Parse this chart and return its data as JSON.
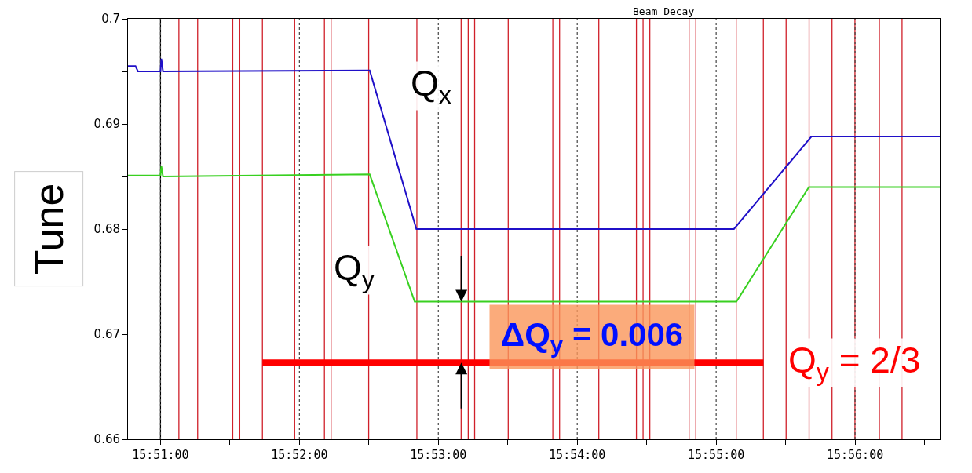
{
  "chart_data": {
    "type": "line",
    "ylabel": "Tune",
    "legend": false,
    "grid": "x",
    "line_style": "solid",
    "marker": "none",
    "annotations": [
      "Beam Decay",
      {
        "text": "ΔQ$_{y}$ = 0.006",
        "x": 15.8861,
        "y": 0.6731
      }
    ],
    "xlim": [
      15.8461,
      15.9435
    ],
    "xticks": [
      {
        "value": 15.85,
        "label": "15:51:00"
      },
      {
        "value": 15.858333,
        "label": null
      },
      {
        "value": 15.866667,
        "label": "15:52:00"
      },
      {
        "value": 15.875,
        "label": null
      },
      {
        "value": 15.883333,
        "label": "15:53:00"
      },
      {
        "value": 15.891667,
        "label": null
      },
      {
        "value": 15.9,
        "label": "15:54:00"
      },
      {
        "value": 15.908333,
        "label": null
      },
      {
        "value": 15.916667,
        "label": "15:55:00"
      },
      {
        "value": 15.925,
        "label": null
      },
      {
        "value": 15.933333,
        "label": "15:56:00"
      },
      {
        "value": 15.941667,
        "label": null
      }
    ],
    "ylim": [
      0.66,
      0.7
    ],
    "yticks": [
      0.7,
      {
        "value": 0.695,
        "label": null
      },
      0.69,
      {
        "value": 0.685,
        "label": null
      },
      0.68,
      {
        "value": 0.675,
        "label": null
      },
      0.67,
      {
        "value": 0.665,
        "label": null
      },
      0.66
    ],
    "series": [
      {
        "name": "Q$_{x}$",
        "color": "#2010c8",
        "x": [
          15.8461,
          15.847,
          15.8473,
          15.85,
          15.8501,
          15.8503,
          15.8751,
          15.8807,
          15.9188,
          15.9281,
          15.9435
        ],
        "values": [
          0.6955,
          0.6955,
          0.695,
          0.695,
          0.6962,
          0.695,
          0.6951,
          0.68,
          0.68,
          0.6888,
          0.6888
        ]
      },
      {
        "name": "Q$_{y}$",
        "color": "#38d020",
        "x": [
          15.8461,
          15.85,
          15.8501,
          15.8503,
          15.8751,
          15.8805,
          15.9191,
          15.9278,
          15.9435
        ],
        "values": [
          0.6851,
          0.6851,
          0.686,
          0.685,
          0.6852,
          0.6731,
          0.6731,
          0.684,
          0.684
        ]
      },
      {
        "name": "Q$_{y}$ = 2/3",
        "color": "#ff0000",
        "x": [
          15.86223,
          15.92233
        ],
        "values": [
          0.6673,
          0.6673
        ]
      }
    ],
    "ref_lines": [
      {
        "axis": "x",
        "value": 15.85,
        "color": "#000000"
      },
      {
        "axis": "x",
        "value": 15.85221,
        "color": "#d0202a"
      },
      {
        "axis": "x",
        "value": 15.85446,
        "color": "#d0202a"
      },
      {
        "axis": "x",
        "value": 15.85867,
        "color": "#d0202a"
      },
      {
        "axis": "x",
        "value": 15.85951,
        "color": "#d0202a"
      },
      {
        "axis": "x",
        "value": 15.86223,
        "color": "#d0202a"
      },
      {
        "axis": "x",
        "value": 15.8661,
        "color": "#d0202a"
      },
      {
        "axis": "x",
        "value": 15.86967,
        "color": "#d0202a"
      },
      {
        "axis": "x",
        "value": 15.87047,
        "color": "#d0202a"
      },
      {
        "axis": "x",
        "value": 15.87498,
        "color": "#d0202a"
      },
      {
        "axis": "x",
        "value": 15.88076,
        "color": "#d0202a"
      },
      {
        "axis": "x",
        "value": 15.88607,
        "color": "#d0202a"
      },
      {
        "axis": "x",
        "value": 15.88692,
        "color": "#d0202a"
      },
      {
        "axis": "x",
        "value": 15.88769,
        "color": "#d0202a"
      },
      {
        "axis": "x",
        "value": 15.89172,
        "color": "#d0202a"
      },
      {
        "axis": "x",
        "value": 15.89707,
        "color": "#d0202a"
      },
      {
        "axis": "x",
        "value": 15.89788,
        "color": "#d0202a"
      },
      {
        "axis": "x",
        "value": 15.90259,
        "color": "#d0202a"
      },
      {
        "axis": "x",
        "value": 15.9071,
        "color": "#d0202a"
      },
      {
        "axis": "x",
        "value": 15.9079,
        "color": "#d0202a"
      },
      {
        "axis": "x",
        "value": 15.90871,
        "color": "#d0202a"
      },
      {
        "axis": "x",
        "value": 15.91342,
        "color": "#d0202a"
      },
      {
        "axis": "x",
        "value": 15.91423,
        "color": "#d0202a"
      },
      {
        "axis": "x",
        "value": 15.91907,
        "color": "#d0202a"
      },
      {
        "axis": "x",
        "value": 15.92233,
        "color": "#d0202a"
      },
      {
        "axis": "x",
        "value": 15.92506,
        "color": "#d0202a"
      },
      {
        "axis": "x",
        "value": 15.92782,
        "color": "#d0202a"
      },
      {
        "axis": "x",
        "value": 15.93057,
        "color": "#d0202a"
      },
      {
        "axis": "x",
        "value": 15.93332,
        "color": "#d0202a"
      },
      {
        "axis": "x",
        "value": 15.93625,
        "color": "#d0202a"
      },
      {
        "axis": "x",
        "value": 15.93897,
        "color": "#d0202a"
      }
    ]
  }
}
